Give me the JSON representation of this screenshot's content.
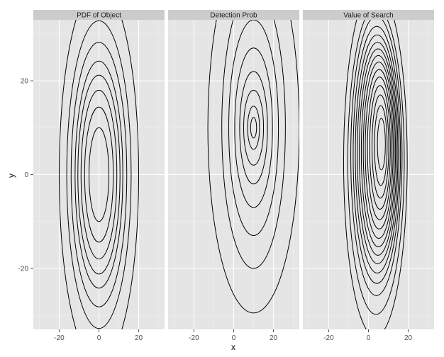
{
  "chart_data": {
    "type": "contour",
    "xlabel": "x",
    "ylabel": "y",
    "xlim": [
      -33,
      33
    ],
    "ylim": [
      -33,
      33
    ],
    "x_ticks": [
      -20,
      0,
      20
    ],
    "y_ticks": [
      -20,
      0,
      20
    ],
    "x_tick_labels": [
      "-20",
      "0",
      "20"
    ],
    "y_tick_labels": [
      "-20",
      "0",
      "20"
    ],
    "grid": true,
    "panel_background": "#e5e5e5",
    "strip_background": "#cccccc",
    "grid_color": "#f2f2f2",
    "line_color": "#000000",
    "panels": [
      {
        "title": "PDF of Object",
        "center": [
          0,
          0
        ],
        "contours": [
          {
            "rx": 5.0,
            "ry": 10.0
          },
          {
            "rx": 7.2,
            "ry": 14.4
          },
          {
            "rx": 9.0,
            "ry": 18.0
          },
          {
            "rx": 10.6,
            "ry": 21.2
          },
          {
            "rx": 12.0,
            "ry": 24.2
          },
          {
            "rx": 14.0,
            "ry": 28.2
          },
          {
            "rx": 16.2,
            "ry": 32.8
          },
          {
            "rx": 20.0,
            "ry": 40.4
          }
        ]
      },
      {
        "title": "Detection Prob",
        "center": [
          10,
          10
        ],
        "contours": [
          {
            "rx": 1.5,
            "ry": 2.2
          },
          {
            "rx": 3.0,
            "ry": 4.6
          },
          {
            "rx": 5.0,
            "ry": 8.0
          },
          {
            "rx": 7.0,
            "ry": 12.0
          },
          {
            "rx": 9.5,
            "ry": 17.0
          },
          {
            "rx": 12.5,
            "ry": 23.0
          },
          {
            "rx": 16.0,
            "ry": 30.0
          },
          {
            "rx": 23.0,
            "ry": 39.5
          }
        ]
      },
      {
        "title": "Value of Search",
        "center": [
          6.5,
          6.5
        ],
        "contours": [
          {
            "rx": 2.0,
            "ry": 5.5,
            "cx": 6.5,
            "cy": 6.5
          },
          {
            "rx": 3.2,
            "ry": 8.5,
            "cx": 6.2,
            "cy": 6.2
          },
          {
            "rx": 4.2,
            "ry": 11.0,
            "cx": 6.0,
            "cy": 6.0
          },
          {
            "rx": 5.2,
            "ry": 13.2,
            "cx": 5.8,
            "cy": 5.8
          },
          {
            "rx": 6.1,
            "ry": 15.2,
            "cx": 5.6,
            "cy": 5.6
          },
          {
            "rx": 7.0,
            "ry": 17.0,
            "cx": 5.4,
            "cy": 5.4
          },
          {
            "rx": 7.8,
            "ry": 18.8,
            "cx": 5.2,
            "cy": 5.2
          },
          {
            "rx": 8.6,
            "ry": 20.4,
            "cx": 5.0,
            "cy": 5.0
          },
          {
            "rx": 9.4,
            "ry": 22.0,
            "cx": 4.8,
            "cy": 4.8
          },
          {
            "rx": 10.2,
            "ry": 23.6,
            "cx": 4.6,
            "cy": 4.6
          },
          {
            "rx": 11.0,
            "ry": 25.4,
            "cx": 4.4,
            "cy": 4.4
          },
          {
            "rx": 11.9,
            "ry": 27.4,
            "cx": 4.2,
            "cy": 4.2
          },
          {
            "rx": 12.9,
            "ry": 29.8,
            "cx": 4.0,
            "cy": 4.0
          },
          {
            "rx": 14.2,
            "ry": 32.8,
            "cx": 3.8,
            "cy": 3.0
          },
          {
            "rx": 16.0,
            "ry": 37.4,
            "cx": 3.5,
            "cy": 2.8
          }
        ]
      }
    ]
  }
}
